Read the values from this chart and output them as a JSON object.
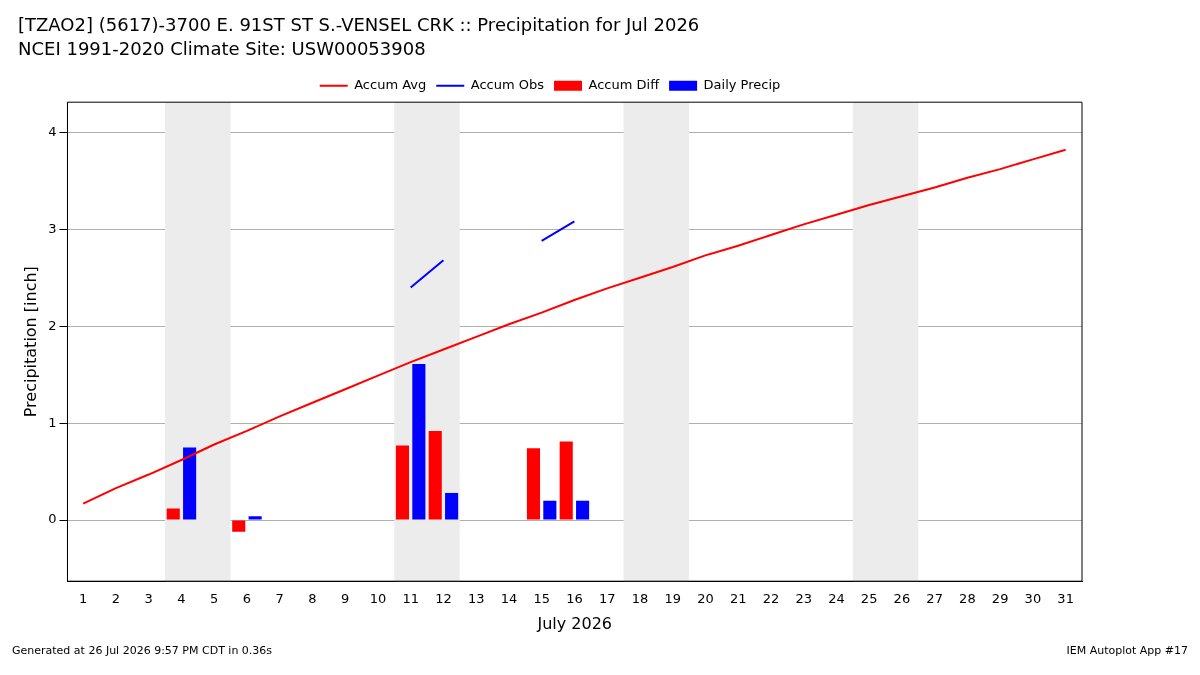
{
  "chart_data": {
    "type": "bar",
    "title": "[TZAO2] (5617)-3700 E. 91ST ST S.-VENSEL CRK :: Precipitation for Jul 2026",
    "subtitle": "NCEI 1991-2020 Climate Site: USW00053908",
    "xlabel": "July 2026",
    "ylabel": "Precipitation [inch]",
    "x": [
      1,
      2,
      3,
      4,
      5,
      6,
      7,
      8,
      9,
      10,
      11,
      12,
      13,
      14,
      15,
      16,
      17,
      18,
      19,
      20,
      21,
      22,
      23,
      24,
      25,
      26,
      27,
      28,
      29,
      30,
      31
    ],
    "series": [
      {
        "name": "Accum Avg",
        "type": "line",
        "color": "#ff0000",
        "values": [
          0.17,
          0.33,
          0.47,
          0.62,
          0.78,
          0.92,
          1.07,
          1.21,
          1.35,
          1.49,
          1.63,
          1.76,
          1.89,
          2.02,
          2.14,
          2.27,
          2.39,
          2.5,
          2.61,
          2.73,
          2.83,
          2.94,
          3.05,
          3.15,
          3.25,
          3.34,
          3.43,
          3.53,
          3.62,
          3.72,
          3.82
        ]
      },
      {
        "name": "Accum Obs",
        "type": "line",
        "color": "#0000ff",
        "values": [
          null,
          null,
          null,
          null,
          null,
          null,
          null,
          null,
          null,
          null,
          2.4,
          2.68,
          null,
          null,
          2.88,
          3.08,
          null,
          null,
          null,
          null,
          null,
          null,
          null,
          null,
          null,
          null,
          null,
          null,
          null,
          null,
          null
        ]
      },
      {
        "name": "Accum Diff",
        "color": "#ff0000",
        "values": [
          null,
          null,
          null,
          0.12,
          null,
          -0.12,
          null,
          null,
          null,
          null,
          0.77,
          0.92,
          null,
          null,
          0.74,
          0.81,
          null,
          null,
          null,
          null,
          null,
          null,
          null,
          null,
          null,
          null,
          null,
          null,
          null,
          null,
          null
        ]
      },
      {
        "name": "Daily Precip",
        "color": "#0000ff",
        "values": [
          null,
          null,
          null,
          0.75,
          null,
          0.04,
          null,
          null,
          null,
          null,
          1.61,
          0.28,
          null,
          null,
          0.2,
          0.2,
          null,
          null,
          null,
          null,
          null,
          null,
          null,
          null,
          null,
          null,
          null,
          null,
          null,
          null,
          null
        ]
      }
    ],
    "xlim": [
      0.52,
      31.5
    ],
    "xticks": [
      1,
      2,
      3,
      4,
      5,
      6,
      7,
      8,
      9,
      10,
      11,
      12,
      13,
      14,
      15,
      16,
      17,
      18,
      19,
      20,
      21,
      22,
      23,
      24,
      25,
      26,
      27,
      28,
      29,
      30,
      31
    ],
    "ylim": [
      -0.63,
      4.31
    ],
    "yticks": [
      0,
      1,
      2,
      3,
      4
    ],
    "bands": [
      {
        "axis": "x",
        "from": 3.5,
        "to": 5.5,
        "color": "#ececec"
      },
      {
        "axis": "x",
        "from": 10.5,
        "to": 12.5,
        "color": "#ececec"
      },
      {
        "axis": "x",
        "from": 17.5,
        "to": 19.5,
        "color": "#ececec"
      },
      {
        "axis": "x",
        "from": 24.5,
        "to": 26.5,
        "color": "#ececec"
      }
    ],
    "grid": "y",
    "legend": "top",
    "annotations": [
      "Generated at 26 Jul 2026 9:57 PM CDT in 0.36s",
      "IEM Autoplot App #17"
    ]
  }
}
